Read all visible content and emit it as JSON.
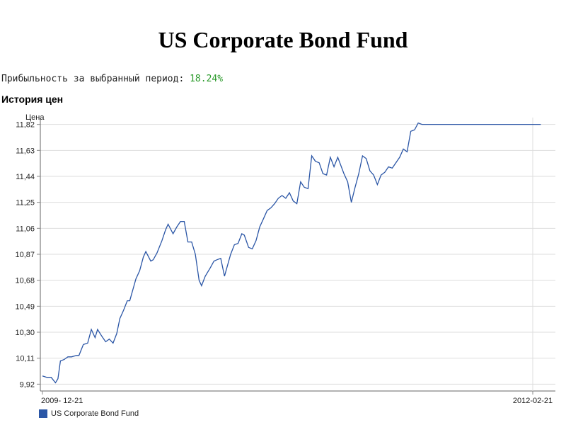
{
  "page": {
    "title": "US Corporate Bond Fund",
    "return_label": "Прибыльность за выбранный период:",
    "return_value": "18.24%",
    "history_heading": "История цен"
  },
  "chart_data": {
    "type": "line",
    "ylabel": "Цена",
    "ylim": [
      9.87,
      11.87
    ],
    "y_ticks": [
      "9,92",
      "10,11",
      "10,30",
      "10,49",
      "10,68",
      "10,87",
      "11,06",
      "11,25",
      "11,44",
      "11,63",
      "11,82"
    ],
    "y_tick_values": [
      9.92,
      10.11,
      10.3,
      10.49,
      10.68,
      10.87,
      11.06,
      11.25,
      11.44,
      11.63,
      11.82
    ],
    "x_tick_labels": [
      "2009- 12-21",
      "2012-02-21"
    ],
    "x_range": [
      "2009-12-21",
      "2012-02-21"
    ],
    "line_color": "#2b56a6",
    "grid": true,
    "legend_position": "bottom-left",
    "series": [
      {
        "name": "US Corporate Bond Fund",
        "x": [
          "2009-12-21",
          "2009-12-28",
          "2010-01-04",
          "2010-01-11",
          "2010-01-15",
          "2010-01-19",
          "2010-01-25",
          "2010-01-31",
          "2010-02-06",
          "2010-02-14",
          "2010-02-18",
          "2010-02-25",
          "2010-03-04",
          "2010-03-10",
          "2010-03-16",
          "2010-03-20",
          "2010-03-27",
          "2010-04-02",
          "2010-04-08",
          "2010-04-14",
          "2010-04-20",
          "2010-04-25",
          "2010-05-01",
          "2010-05-07",
          "2010-05-11",
          "2010-05-21",
          "2010-05-27",
          "2010-06-02",
          "2010-06-06",
          "2010-06-14",
          "2010-06-18",
          "2010-06-24",
          "2010-07-02",
          "2010-07-08",
          "2010-07-12",
          "2010-07-20",
          "2010-07-26",
          "2010-08-01",
          "2010-08-07",
          "2010-08-13",
          "2010-08-19",
          "2010-08-25",
          "2010-08-31",
          "2010-09-04",
          "2010-09-10",
          "2010-09-18",
          "2010-09-24",
          "2010-09-29",
          "2010-10-05",
          "2010-10-11",
          "2010-10-21",
          "2010-10-27",
          "2010-11-02",
          "2010-11-08",
          "2010-11-12",
          "2010-11-19",
          "2010-11-25",
          "2010-12-01",
          "2010-12-07",
          "2010-12-13",
          "2010-12-19",
          "2010-12-25",
          "2010-12-31",
          "2011-01-06",
          "2011-01-12",
          "2011-01-18",
          "2011-01-24",
          "2011-01-30",
          "2011-02-05",
          "2011-02-11",
          "2011-02-17",
          "2011-02-23",
          "2011-03-01",
          "2011-03-07",
          "2011-03-13",
          "2011-03-19",
          "2011-03-25",
          "2011-03-31",
          "2011-04-06",
          "2011-04-12",
          "2011-04-22",
          "2011-04-28",
          "2011-05-04",
          "2011-05-10",
          "2011-05-16",
          "2011-05-22",
          "2011-05-28",
          "2011-06-03",
          "2011-06-09",
          "2011-06-15",
          "2011-06-21",
          "2011-06-27",
          "2011-07-03",
          "2011-07-09",
          "2011-07-15",
          "2011-07-21",
          "2011-07-27",
          "2011-08-02",
          "2011-08-08",
          "2011-08-14",
          "2011-08-20",
          "2011-08-26",
          "2011-09-01",
          "2011-09-07",
          "2011-09-13",
          "2011-09-23",
          "2011-09-29",
          "2011-10-05",
          "2011-10-11",
          "2011-10-17",
          "2011-10-23",
          "2011-10-29",
          "2011-11-04",
          "2011-11-10",
          "2011-11-16",
          "2011-11-22",
          "2011-11-28",
          "2011-12-04",
          "2011-12-10",
          "2011-12-16",
          "2011-12-22",
          "2011-12-28",
          "2012-01-03",
          "2012-01-09",
          "2012-01-15",
          "2012-01-21",
          "2012-01-27",
          "2012-02-02",
          "2012-02-10",
          "2012-02-16",
          "2012-02-22",
          "2012-02-28",
          "2012-03-05"
        ],
        "values": [
          9.98,
          9.97,
          9.97,
          9.93,
          9.96,
          10.09,
          10.1,
          10.12,
          10.12,
          10.13,
          10.13,
          10.21,
          10.22,
          10.32,
          10.26,
          10.32,
          10.27,
          10.23,
          10.25,
          10.22,
          10.29,
          10.4,
          10.46,
          10.53,
          10.53,
          10.69,
          10.75,
          10.85,
          10.89,
          10.82,
          10.83,
          10.88,
          10.97,
          11.05,
          11.09,
          11.02,
          11.07,
          11.11,
          11.11,
          10.96,
          10.96,
          10.87,
          10.68,
          10.64,
          10.71,
          10.77,
          10.82,
          10.83,
          10.84,
          10.71,
          10.87,
          10.94,
          10.95,
          11.02,
          11.01,
          10.92,
          10.91,
          10.97,
          11.07,
          11.13,
          11.19,
          11.21,
          11.24,
          11.28,
          11.3,
          11.28,
          11.32,
          11.26,
          11.24,
          11.4,
          11.36,
          11.35,
          11.59,
          11.55,
          11.54,
          11.46,
          11.45,
          11.58,
          11.51,
          11.58,
          11.46,
          11.4,
          11.25,
          11.36,
          11.46,
          11.59,
          11.57,
          11.48,
          11.45,
          11.38,
          11.45,
          11.47,
          11.51,
          11.5,
          11.54,
          11.58,
          11.64,
          11.62,
          11.77,
          11.78,
          11.83,
          11.82,
          11.82,
          11.82,
          11.82,
          11.82,
          11.82,
          11.82,
          11.82,
          11.82,
          11.82,
          11.82,
          11.82,
          11.82,
          11.82,
          11.82,
          11.82,
          11.82,
          11.82,
          11.82,
          11.82,
          11.82,
          11.82,
          11.82,
          11.82,
          11.82,
          11.82,
          11.82,
          11.82,
          11.82,
          11.82,
          11.82,
          11.82
        ]
      }
    ]
  }
}
